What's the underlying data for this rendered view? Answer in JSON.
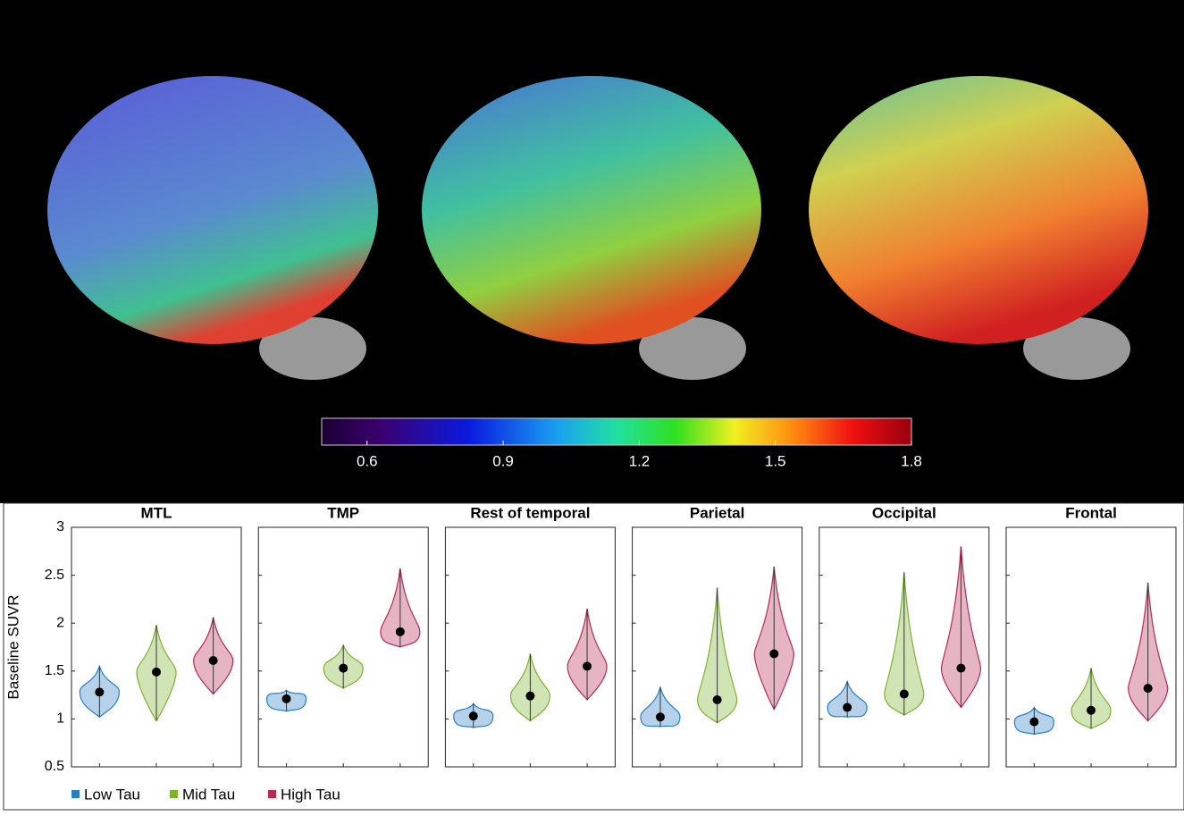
{
  "chart_data": [
    {
      "type": "colorbar",
      "xlim": [
        0.5,
        1.8
      ],
      "xticks": [
        0.6,
        0.9,
        1.2,
        1.5,
        1.8
      ]
    },
    {
      "type": "violin",
      "ylabel": "Baseline SUVR",
      "categories": [
        "MTL",
        "TMP",
        "Rest of temporal",
        "Parietal",
        "Occipital",
        "Frontal"
      ],
      "ylim": [
        0.5,
        3
      ],
      "yticks": [
        0.5,
        1,
        1.5,
        2,
        2.5,
        3
      ],
      "series": [
        {
          "name": "Low Tau",
          "color": "#2a7fc2",
          "values": [
            1.28,
            1.21,
            1.03,
            1.02,
            1.12,
            0.97
          ],
          "min": [
            1.02,
            1.08,
            0.91,
            0.92,
            1.02,
            0.84
          ],
          "max": [
            1.55,
            1.3,
            1.16,
            1.33,
            1.39,
            1.12
          ]
        },
        {
          "name": "Mid Tau",
          "color": "#7bb32f",
          "values": [
            1.49,
            1.53,
            1.24,
            1.2,
            1.26,
            1.09
          ],
          "min": [
            0.98,
            1.32,
            0.98,
            0.96,
            1.04,
            0.9
          ],
          "max": [
            1.98,
            1.77,
            1.68,
            2.37,
            2.53,
            1.53
          ]
        },
        {
          "name": "High Tau",
          "color": "#b52b55",
          "values": [
            1.61,
            1.91,
            1.55,
            1.68,
            1.53,
            1.32
          ],
          "min": [
            1.26,
            1.75,
            1.2,
            1.1,
            1.12,
            0.98
          ],
          "max": [
            2.06,
            2.57,
            2.15,
            2.59,
            2.8,
            2.42
          ]
        }
      ]
    }
  ]
}
